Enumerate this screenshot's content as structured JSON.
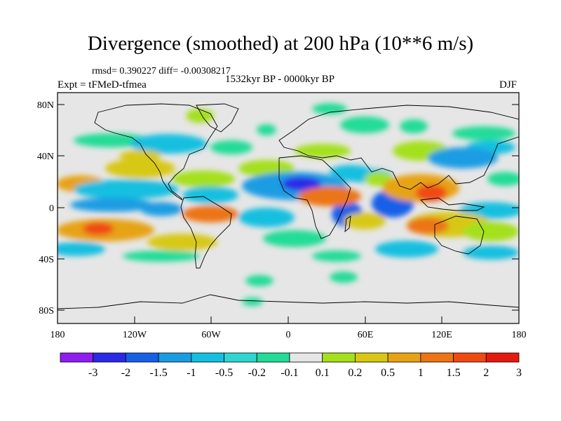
{
  "title": "Divergence (smoothed) at 200 hPa (10**6 m/s)",
  "stats": "rmsd= 0.390227 diff= -0.00308217",
  "experiment": "Expt = tFMeD-tfmea",
  "period": "1532kyr BP - 0000kyr BP",
  "season": "DJF",
  "chart_data": {
    "type": "heatmap",
    "projection": "cylindrical-equidistant",
    "lon_range": [
      -180,
      180
    ],
    "lat_range": [
      -90,
      90
    ],
    "lon_ticks": [
      "180",
      "120W",
      "60W",
      "0",
      "60E",
      "120E",
      "180"
    ],
    "lon_tick_values": [
      -180,
      -120,
      -60,
      0,
      60,
      120,
      180
    ],
    "lat_ticks": [
      "80N",
      "40N",
      "0",
      "40S",
      "80S"
    ],
    "lat_tick_values": [
      80,
      40,
      0,
      -40,
      -80
    ],
    "colorbar": {
      "boundaries": [
        "-3",
        "-2",
        "-1.5",
        "-1",
        "-0.5",
        "-0.2",
        "-0.1",
        "0.1",
        "0.2",
        "0.5",
        "1",
        "1.5",
        "2",
        "3"
      ],
      "colors": [
        "#8f1df0",
        "#2a29e6",
        "#1660e8",
        "#1a9ce3",
        "#14bfe0",
        "#2fd6d0",
        "#22dc97",
        "#e6e6e6",
        "#a4e01c",
        "#d8c813",
        "#e7a313",
        "#ec7414",
        "#ef4a12",
        "#e6190f"
      ]
    },
    "features": [
      {
        "name": "negative-band-equatorial-atlantic-africa",
        "lon": [
          -30,
          60
        ],
        "lat": [
          5,
          25
        ],
        "value": -1.5
      },
      {
        "name": "negative-core-north-africa",
        "lon": [
          5,
          25
        ],
        "lat": [
          12,
          24
        ],
        "value": -2
      },
      {
        "name": "positive-band-indian-ocean-maritime-continent",
        "lon": [
          60,
          170
        ],
        "lat": [
          -30,
          20
        ],
        "value": 1.5
      },
      {
        "name": "positive-core-southeast-asia",
        "lon": [
          95,
          120
        ],
        "lat": [
          5,
          15
        ],
        "value": 2
      },
      {
        "name": "positive-core-south-pacific",
        "lon": [
          -170,
          -150
        ],
        "lat": [
          -20,
          -10
        ],
        "value": 3
      },
      {
        "name": "negative-band-tropical-pacific",
        "lon": [
          -180,
          -60
        ],
        "lat": [
          0,
          20
        ],
        "value": -1
      }
    ]
  }
}
